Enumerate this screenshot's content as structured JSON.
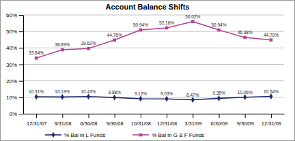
{
  "chart_data": {
    "type": "line",
    "title": "Account Balance Shifts",
    "categories": [
      "12/31/07",
      "3/31/08",
      "6/30/08",
      "9/30/08",
      "10/31/08",
      "12/31/08",
      "3/31/09",
      "6/30/09",
      "9/30/09",
      "12/31/09"
    ],
    "series": [
      {
        "name": "% Bal in L Funds",
        "color": "#1f2a66",
        "marker": "diamond",
        "values": [
          10.31,
          10.19,
          10.43,
          9.88,
          9.12,
          9.03,
          8.47,
          9.35,
          10.06,
          10.54
        ],
        "value_labels": [
          "10.31%",
          "10.19%",
          "10.43%",
          "9.88%",
          "9.12%",
          "9.03%",
          "8.47%",
          "9.35%",
          "10.06%",
          "10.54%"
        ]
      },
      {
        "name": "% Bal in G & F Funds",
        "color": "#b0489a",
        "marker": "square",
        "values": [
          33.84,
          38.89,
          39.62,
          44.75,
          50.94,
          52.16,
          56.02,
          50.94,
          46.38,
          44.79
        ],
        "value_labels": [
          "33.84%",
          "38.89%",
          "39.62%",
          "44.75%",
          "50.94%",
          "52.16%",
          "56.02%",
          "50.94%",
          "46.38%",
          "44.79%"
        ]
      }
    ],
    "ylim": [
      0,
      60
    ],
    "yticks": [
      {
        "value": 0,
        "label": "0%"
      },
      {
        "value": 10,
        "label": "10%"
      },
      {
        "value": 20,
        "label": "20%"
      },
      {
        "value": 30,
        "label": "30%"
      },
      {
        "value": 40,
        "label": "40%"
      },
      {
        "value": 50,
        "label": "50%"
      },
      {
        "value": 60,
        "label": "60%"
      }
    ],
    "grid": true,
    "data_labels": true,
    "legend": "bottom"
  }
}
